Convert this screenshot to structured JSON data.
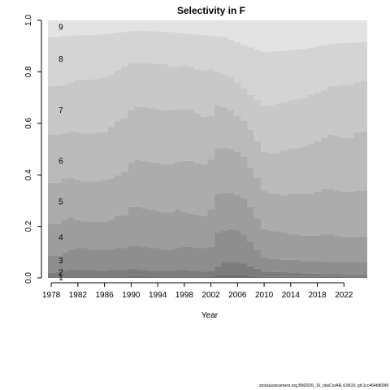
{
  "chart_data": {
    "type": "area",
    "stacked": true,
    "title": "Selectivity in F",
    "xlabel": "Year",
    "ylabel": "",
    "xlim": [
      1977.5,
      2025.5
    ],
    "ylim": [
      0,
      1
    ],
    "x_ticks": [
      1978,
      1982,
      1986,
      1990,
      1994,
      1998,
      2002,
      2006,
      2010,
      2014,
      2018,
      2022
    ],
    "y_ticks": [
      0.0,
      0.2,
      0.4,
      0.6,
      0.8,
      1.0
    ],
    "y_tick_labels": [
      "0.0",
      "0.2",
      "0.4",
      "0.6",
      "0.8",
      "1.0"
    ],
    "band_labels": [
      "1",
      "2",
      "3",
      "4",
      "5",
      "6",
      "7",
      "8",
      "9"
    ],
    "band_colors": [
      "#6b6b6b",
      "#7c7c7c",
      "#8e8e8e",
      "#9d9d9d",
      "#acacac",
      "#bababa",
      "#c8c8c8",
      "#d4d4d4",
      "#e3e3e3"
    ],
    "x": [
      1978,
      1979,
      1980,
      1981,
      1982,
      1983,
      1984,
      1985,
      1986,
      1987,
      1988,
      1989,
      1990,
      1991,
      1992,
      1993,
      1994,
      1995,
      1996,
      1997,
      1998,
      1999,
      2000,
      2001,
      2002,
      2003,
      2004,
      2005,
      2006,
      2007,
      2008,
      2009,
      2010,
      2011,
      2012,
      2013,
      2014,
      2015,
      2016,
      2017,
      2018,
      2019,
      2020,
      2021,
      2022,
      2023,
      2024,
      2025
    ],
    "cumulative": [
      [
        0.005,
        0.005,
        0.005,
        0.005,
        0.005,
        0.005,
        0.005,
        0.005,
        0.005,
        0.005,
        0.005,
        0.005,
        0.007,
        0.007,
        0.006,
        0.006,
        0.005,
        0.005,
        0.005,
        0.005,
        0.005,
        0.005,
        0.005,
        0.005,
        0.005,
        0.008,
        0.01,
        0.01,
        0.01,
        0.008,
        0.007,
        0.005,
        0.004,
        0.004,
        0.004,
        0.004,
        0.004,
        0.004,
        0.004,
        0.004,
        0.004,
        0.004,
        0.004,
        0.004,
        0.004,
        0.004,
        0.004,
        0.004
      ],
      [
        0.02,
        0.022,
        0.028,
        0.03,
        0.032,
        0.03,
        0.03,
        0.029,
        0.029,
        0.03,
        0.03,
        0.031,
        0.033,
        0.033,
        0.03,
        0.029,
        0.028,
        0.028,
        0.028,
        0.03,
        0.03,
        0.029,
        0.027,
        0.025,
        0.028,
        0.045,
        0.06,
        0.062,
        0.062,
        0.055,
        0.045,
        0.035,
        0.025,
        0.024,
        0.023,
        0.022,
        0.02,
        0.019,
        0.018,
        0.017,
        0.016,
        0.015,
        0.014,
        0.014,
        0.013,
        0.013,
        0.013,
        0.013
      ],
      [
        0.085,
        0.085,
        0.1,
        0.11,
        0.115,
        0.115,
        0.11,
        0.11,
        0.11,
        0.11,
        0.115,
        0.115,
        0.125,
        0.125,
        0.12,
        0.115,
        0.115,
        0.11,
        0.11,
        0.115,
        0.12,
        0.12,
        0.115,
        0.115,
        0.12,
        0.175,
        0.185,
        0.19,
        0.185,
        0.17,
        0.14,
        0.11,
        0.08,
        0.075,
        0.075,
        0.07,
        0.07,
        0.07,
        0.065,
        0.065,
        0.065,
        0.065,
        0.06,
        0.06,
        0.06,
        0.06,
        0.06,
        0.06
      ],
      [
        0.21,
        0.21,
        0.225,
        0.235,
        0.225,
        0.22,
        0.22,
        0.22,
        0.22,
        0.225,
        0.24,
        0.245,
        0.275,
        0.275,
        0.27,
        0.265,
        0.26,
        0.255,
        0.255,
        0.265,
        0.255,
        0.25,
        0.245,
        0.24,
        0.265,
        0.325,
        0.33,
        0.33,
        0.32,
        0.31,
        0.275,
        0.23,
        0.19,
        0.185,
        0.18,
        0.175,
        0.17,
        0.17,
        0.165,
        0.165,
        0.165,
        0.17,
        0.17,
        0.165,
        0.16,
        0.16,
        0.16,
        0.16
      ],
      [
        0.37,
        0.37,
        0.385,
        0.39,
        0.38,
        0.375,
        0.375,
        0.375,
        0.38,
        0.385,
        0.4,
        0.41,
        0.45,
        0.46,
        0.455,
        0.45,
        0.445,
        0.44,
        0.44,
        0.45,
        0.455,
        0.455,
        0.445,
        0.44,
        0.46,
        0.5,
        0.505,
        0.5,
        0.49,
        0.47,
        0.43,
        0.39,
        0.34,
        0.33,
        0.325,
        0.32,
        0.325,
        0.325,
        0.325,
        0.325,
        0.335,
        0.345,
        0.345,
        0.34,
        0.335,
        0.335,
        0.34,
        0.34
      ],
      [
        0.555,
        0.555,
        0.56,
        0.57,
        0.565,
        0.56,
        0.56,
        0.565,
        0.565,
        0.585,
        0.61,
        0.62,
        0.65,
        0.665,
        0.665,
        0.66,
        0.655,
        0.65,
        0.65,
        0.655,
        0.655,
        0.655,
        0.64,
        0.625,
        0.63,
        0.67,
        0.665,
        0.65,
        0.63,
        0.61,
        0.575,
        0.53,
        0.49,
        0.485,
        0.485,
        0.495,
        0.5,
        0.505,
        0.51,
        0.52,
        0.53,
        0.545,
        0.555,
        0.55,
        0.545,
        0.545,
        0.565,
        0.57
      ],
      [
        0.745,
        0.745,
        0.75,
        0.76,
        0.77,
        0.77,
        0.77,
        0.775,
        0.78,
        0.79,
        0.805,
        0.82,
        0.835,
        0.835,
        0.835,
        0.835,
        0.83,
        0.83,
        0.82,
        0.82,
        0.825,
        0.82,
        0.81,
        0.805,
        0.81,
        0.8,
        0.79,
        0.78,
        0.76,
        0.735,
        0.71,
        0.69,
        0.67,
        0.67,
        0.675,
        0.68,
        0.69,
        0.695,
        0.7,
        0.71,
        0.72,
        0.73,
        0.745,
        0.745,
        0.75,
        0.75,
        0.76,
        0.765
      ],
      [
        0.935,
        0.935,
        0.94,
        0.94,
        0.942,
        0.942,
        0.943,
        0.945,
        0.947,
        0.95,
        0.953,
        0.955,
        0.958,
        0.96,
        0.958,
        0.958,
        0.957,
        0.955,
        0.955,
        0.952,
        0.95,
        0.947,
        0.945,
        0.942,
        0.94,
        0.938,
        0.935,
        0.925,
        0.915,
        0.905,
        0.895,
        0.885,
        0.878,
        0.878,
        0.88,
        0.882,
        0.885,
        0.887,
        0.89,
        0.893,
        0.898,
        0.903,
        0.908,
        0.91,
        0.912,
        0.913,
        0.914,
        0.915
      ],
      [
        1,
        1,
        1,
        1,
        1,
        1,
        1,
        1,
        1,
        1,
        1,
        1,
        1,
        1,
        1,
        1,
        1,
        1,
        1,
        1,
        1,
        1,
        1,
        1,
        1,
        1,
        1,
        1,
        1,
        1,
        1,
        1,
        1,
        1,
        1,
        1,
        1,
        1,
        1,
        1,
        1,
        1,
        1,
        1,
        1,
        1,
        1,
        1
      ]
    ],
    "label_x": 1978,
    "label_y": [
      0.002,
      0.022,
      0.068,
      0.158,
      0.296,
      0.455,
      0.652,
      0.85,
      0.975
    ]
  },
  "footnote": "stockassessment.org,BM2026_10_obsCorAR,r19619, git:1cc464b8096f"
}
